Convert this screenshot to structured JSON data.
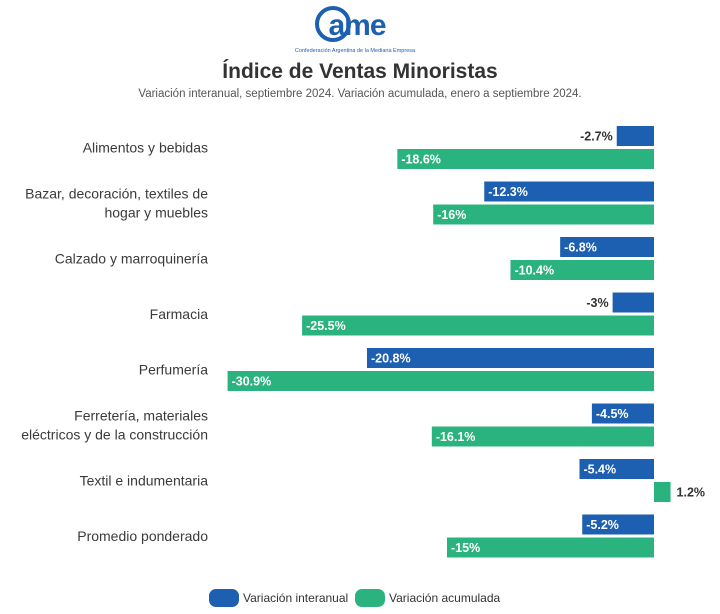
{
  "brand": {
    "name": "CAME",
    "tagline": "Confederación Argentina de la Mediana Empresa",
    "color": "#1d5fb0"
  },
  "title": "Índice de Ventas Minoristas",
  "subtitle": "Variación interanual, septiembre 2024. Variación acumulada, enero a septiembre 2024.",
  "chart_data": {
    "type": "bar",
    "orientation": "horizontal",
    "categories": [
      "Alimentos y bebidas",
      "Bazar, decoración, textiles de\nhogar y muebles",
      "Calzado y marroquinería",
      "Farmacia",
      "Perfumería",
      "Ferretería, materiales\neléctricos y de la construcción",
      "Textil e indumentaria",
      "Promedio ponderado"
    ],
    "series": [
      {
        "name": "Variación interanual",
        "color": "#1d5fb0",
        "values": [
          -2.7,
          -12.3,
          -6.8,
          -3,
          -20.8,
          -4.5,
          -5.4,
          -5.2
        ],
        "labels": [
          "-2.7%",
          "-12.3%",
          "-6.8%",
          "-3%",
          "-20.8%",
          "-4.5%",
          "-5.4%",
          "-5.2%"
        ]
      },
      {
        "name": "Variación acumulada",
        "color": "#2bb37f",
        "values": [
          -18.6,
          -16,
          -10.4,
          -25.5,
          -30.9,
          -16.1,
          1.2,
          -15
        ],
        "labels": [
          "-18.6%",
          "-16%",
          "-10.4%",
          "-25.5%",
          "-30.9%",
          "-16.1%",
          "1.2%",
          "-15%"
        ]
      }
    ],
    "legend_position": "bottom",
    "grid": false
  }
}
